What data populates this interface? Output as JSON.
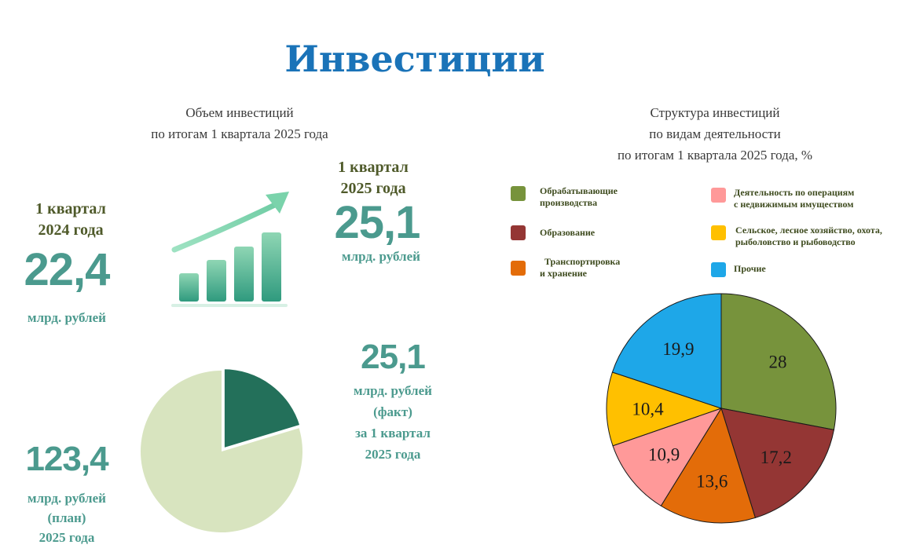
{
  "title": "Инвестиции",
  "left": {
    "subtitle": [
      "Объем инвестиций",
      "по итогам 1 квартала 2025 года"
    ],
    "q2024": {
      "period": [
        "1 квартал",
        "2024 года"
      ],
      "value": "22,4",
      "unit": "млрд. рублей"
    },
    "q2025": {
      "period": [
        "1 квартал",
        "2025 года"
      ],
      "value": "25,1",
      "unit": "млрд. рублей"
    },
    "fact": {
      "value": "25,1",
      "lines": [
        "млрд. рублей",
        "(факт)",
        "за 1 квартал",
        "2025 года"
      ]
    },
    "plan": {
      "value": "123,4",
      "lines": [
        "млрд. рублей",
        "(план)",
        "2025 года"
      ]
    }
  },
  "right": {
    "subtitle": [
      "Структура инвестиций",
      "по видам деятельности",
      "по итогам 1 квартала 2025 года, %"
    ],
    "legend": [
      {
        "lines": [
          "Обрабатывающие",
          "производства"
        ],
        "color": "#77933c"
      },
      {
        "lines": [
          "Деятельность по операциям",
          "с недвижимым имуществом"
        ],
        "color": "#ff9999"
      },
      {
        "lines": [
          "Образование"
        ],
        "color": "#943634"
      },
      {
        "lines": [
          "Сельское, лесное хозяйство, охота,",
          "рыболовство и рыбоводство"
        ],
        "color": "#ffc000"
      },
      {
        "lines": [
          "Транспортировка",
          "и хранение"
        ],
        "color": "#e36c09"
      },
      {
        "lines": [
          "Прочие"
        ],
        "color": "#1ea7e8"
      }
    ]
  },
  "chart_data": [
    {
      "type": "pie",
      "categories": [
        "Факт",
        "План"
      ],
      "values": [
        25.1,
        123.4
      ],
      "colors": [
        "#23705a",
        "#d8e4bf"
      ]
    },
    {
      "type": "pie",
      "categories": [
        "Обрабатывающие производства",
        "Образование",
        "Транспортировка и хранение",
        "Деятельность по операциям с недвижимым имуществом",
        "Сельское, лесное хозяйство, охота, рыболовство и рыбоводство",
        "Прочие"
      ],
      "values": [
        28,
        17.2,
        13.6,
        10.9,
        10.4,
        19.9
      ],
      "labels": [
        "28",
        "17,2",
        "13,6",
        "10,9",
        "10,4",
        "19,9"
      ],
      "colors": [
        "#77933c",
        "#943634",
        "#e36c09",
        "#ff9999",
        "#ffc000",
        "#1ea7e8"
      ]
    }
  ]
}
